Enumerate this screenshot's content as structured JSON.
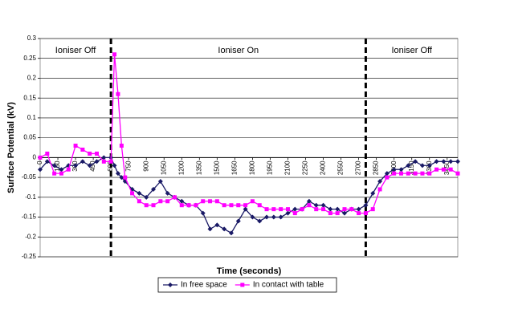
{
  "chart_data": {
    "type": "line",
    "y_label": "Surface Potential (kV)",
    "x_label": "Time (seconds)",
    "x": [
      0,
      60,
      120,
      180,
      240,
      300,
      360,
      420,
      480,
      540,
      600,
      630,
      660,
      690,
      720,
      780,
      840,
      900,
      960,
      1020,
      1080,
      1140,
      1200,
      1260,
      1320,
      1380,
      1440,
      1500,
      1560,
      1620,
      1680,
      1740,
      1800,
      1860,
      1920,
      1980,
      2040,
      2100,
      2160,
      2220,
      2280,
      2340,
      2400,
      2460,
      2520,
      2580,
      2640,
      2700,
      2760,
      2820,
      2880,
      2940,
      3000,
      3060,
      3120,
      3180,
      3240,
      3300,
      3360,
      3420,
      3480,
      3540
    ],
    "series": [
      {
        "name": "In free space",
        "color": "#1a1a66",
        "marker": "diamond",
        "values": [
          -0.03,
          -0.01,
          -0.02,
          -0.03,
          -0.02,
          -0.02,
          -0.01,
          -0.02,
          -0.01,
          0.0,
          0.0,
          -0.02,
          -0.04,
          -0.05,
          -0.06,
          -0.08,
          -0.09,
          -0.1,
          -0.08,
          -0.06,
          -0.09,
          -0.1,
          -0.11,
          -0.12,
          -0.12,
          -0.14,
          -0.18,
          -0.17,
          -0.18,
          -0.19,
          -0.16,
          -0.13,
          -0.15,
          -0.16,
          -0.15,
          -0.15,
          -0.15,
          -0.14,
          -0.13,
          -0.13,
          -0.11,
          -0.12,
          -0.12,
          -0.13,
          -0.13,
          -0.14,
          -0.13,
          -0.13,
          -0.12,
          -0.09,
          -0.06,
          -0.04,
          -0.03,
          -0.03,
          -0.02,
          -0.01,
          -0.02,
          -0.02,
          -0.01,
          -0.01,
          -0.01,
          -0.01
        ]
      },
      {
        "name": "In contact with table",
        "color": "#ff00ff",
        "marker": "square",
        "values": [
          0.0,
          0.01,
          -0.04,
          -0.04,
          -0.03,
          0.03,
          0.02,
          0.01,
          0.01,
          -0.01,
          -0.01,
          0.26,
          0.16,
          0.03,
          -0.05,
          -0.09,
          -0.11,
          -0.12,
          -0.12,
          -0.11,
          -0.11,
          -0.1,
          -0.12,
          -0.12,
          -0.12,
          -0.11,
          -0.11,
          -0.11,
          -0.12,
          -0.12,
          -0.12,
          -0.12,
          -0.11,
          -0.12,
          -0.13,
          -0.13,
          -0.13,
          -0.13,
          -0.14,
          -0.13,
          -0.12,
          -0.13,
          -0.13,
          -0.14,
          -0.14,
          -0.13,
          -0.13,
          -0.14,
          -0.14,
          -0.13,
          -0.08,
          -0.05,
          -0.04,
          -0.04,
          -0.04,
          -0.04,
          -0.04,
          -0.04,
          -0.03,
          -0.03,
          -0.03,
          -0.04
        ]
      }
    ],
    "xlim": [
      0,
      3540
    ],
    "xticks": [
      0,
      150,
      300,
      450,
      600,
      750,
      900,
      1050,
      1200,
      1350,
      1500,
      1650,
      1800,
      1950,
      2100,
      2250,
      2400,
      2550,
      2700,
      2850,
      3000,
      3150,
      3300,
      3450
    ],
    "ylim": [
      -0.25,
      0.3
    ],
    "yticks": [
      -0.25,
      -0.2,
      -0.15,
      -0.1,
      -0.05,
      0,
      0.05,
      0.1,
      0.15,
      0.2,
      0.25,
      0.3
    ],
    "grid": true,
    "dividers": [
      600,
      2760
    ],
    "region_labels": [
      "Ioniser Off",
      "Ioniser On",
      "Ioniser Off"
    ],
    "legend": "bottom"
  }
}
